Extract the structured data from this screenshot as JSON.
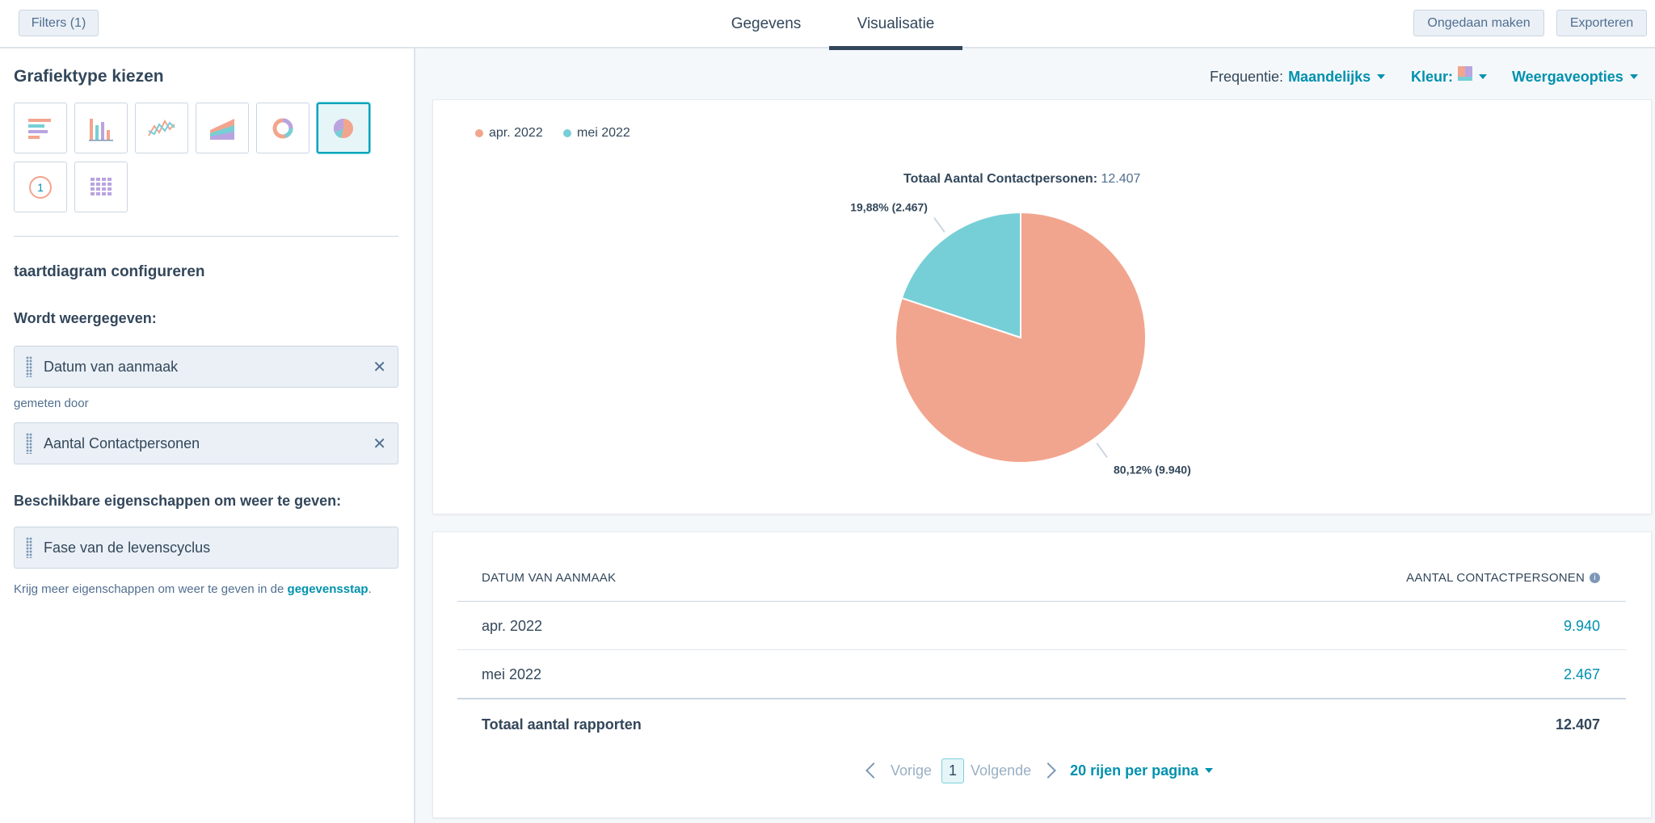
{
  "header": {
    "filters_label": "Filters (1)",
    "tabs": [
      {
        "label": "Gegevens"
      },
      {
        "label": "Visualisatie"
      }
    ],
    "undo_label": "Ongedaan maken",
    "export_label": "Exporteren"
  },
  "sidebar": {
    "chart_type_title": "Grafiektype kiezen",
    "chart_types": [
      {
        "icon": "horizontal-bar-chart-icon"
      },
      {
        "icon": "vertical-bar-chart-icon"
      },
      {
        "icon": "line-chart-icon"
      },
      {
        "icon": "area-chart-icon"
      },
      {
        "icon": "donut-chart-icon"
      },
      {
        "icon": "pie-chart-icon",
        "selected": true
      },
      {
        "icon": "summary-number-icon",
        "text": "1"
      },
      {
        "icon": "table-icon"
      }
    ],
    "configure_title": "taartdiagram configureren",
    "displayed_title": "Wordt weergegeven:",
    "dimension": "Datum van aanmaak",
    "measured_by": "gemeten door",
    "measure": "Aantal Contactpersonen",
    "available_title": "Beschikbare eigenschappen om weer te geven:",
    "available_property": "Fase van de levenscyclus",
    "more_text": "Krijg meer eigenschappen om weer te geven in de",
    "more_link": "gegevensstap",
    "more_suffix": "."
  },
  "controls": {
    "frequency_label": "Frequentie:",
    "frequency_value": "Maandelijks",
    "color_label": "Kleur:",
    "display_options": "Weergaveopties"
  },
  "chart_data": {
    "type": "pie",
    "title": "Totaal Aantal Contactpersonen:",
    "total": "12.407",
    "legend_position": "top-left",
    "categories": [
      "apr. 2022",
      "mei 2022"
    ],
    "values": [
      9940,
      2467
    ],
    "colors": [
      "#f2a58e",
      "#76cfd6"
    ],
    "labels": [
      "80,12% (9.940)",
      "19,88% (2.467)"
    ]
  },
  "table": {
    "headers": [
      "DATUM VAN AANMAAK",
      "AANTAL CONTACTPERSONEN"
    ],
    "rows": [
      {
        "date": "apr. 2022",
        "count": "9.940"
      },
      {
        "date": "mei 2022",
        "count": "2.467"
      }
    ],
    "total_label": "Totaal aantal rapporten",
    "total_value": "12.407"
  },
  "pagination": {
    "prev": "Vorige",
    "page": "1",
    "next": "Volgende",
    "per_page": "20 rijen per pagina"
  }
}
